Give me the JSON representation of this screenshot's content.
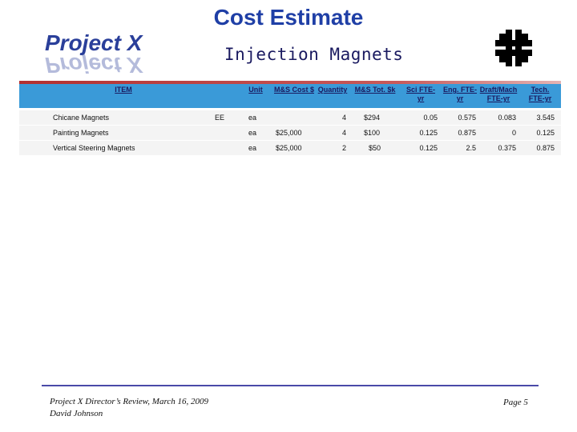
{
  "title": "Cost Estimate",
  "subtitle": "Injection Magnets",
  "logo_text": "Project X",
  "table": {
    "headers": {
      "item": "ITEM",
      "unit": "Unit",
      "ms_cost": "M&S Cost $",
      "quantity": "Quantity",
      "ms_tot": "M&S Tot. $k",
      "sci": "Sci FTE-yr",
      "eng": "Eng. FTE-yr",
      "draft": "Draft/Mach FTE-yr",
      "tech": "Tech. FTE-yr"
    },
    "rows": [
      {
        "item": "Chicane Magnets",
        "dept": "EE",
        "unit": "ea",
        "ms_cost": "",
        "quantity": "4",
        "ms_tot": "$294",
        "sci": "0.05",
        "eng": "0.575",
        "draft": "0.083",
        "tech": "3.545"
      },
      {
        "item": "Painting Magnets",
        "dept": "",
        "unit": "ea",
        "ms_cost": "$25,000",
        "quantity": "4",
        "ms_tot": "$100",
        "sci": "0.125",
        "eng": "0.875",
        "draft": "0",
        "tech": "0.125"
      },
      {
        "item": "Vertical Steering Magnets",
        "dept": "",
        "unit": "ea",
        "ms_cost": "$25,000",
        "quantity": "2",
        "ms_tot": "$50",
        "sci": "0.125",
        "eng": "2.5",
        "draft": "0.375",
        "tech": "0.875"
      }
    ]
  },
  "footer": {
    "line1": "Project X Director’s Review, March 16, 2009",
    "line2": "David Johnson",
    "page": "Page 5"
  },
  "colors": {
    "title": "#1f3fa6",
    "header_bg": "#3a9ad8",
    "accent_bar": "#b33030",
    "footer_line": "#4a4aa8"
  }
}
